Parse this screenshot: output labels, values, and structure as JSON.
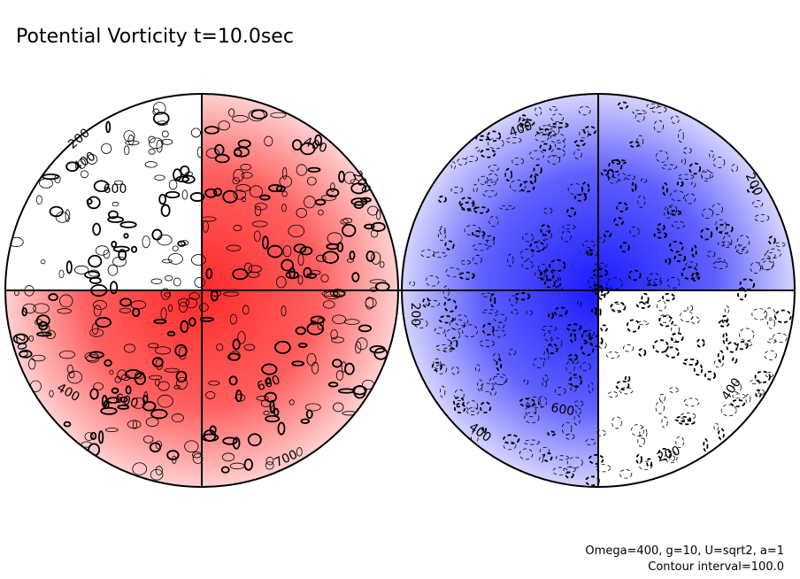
{
  "title": "Potential Vorticity t=10.0sec",
  "footer": [
    "Omega=400, g=10, U=sqrt2, a=1",
    "Contour interval=100.0"
  ],
  "contour_labels": {
    "left": [
      "200",
      "400",
      "600",
      "400",
      "200",
      "200",
      "400",
      "600",
      "600",
      "700"
    ],
    "right": [
      "400",
      "200",
      "200",
      "600",
      "400",
      "400",
      "200"
    ]
  }
}
